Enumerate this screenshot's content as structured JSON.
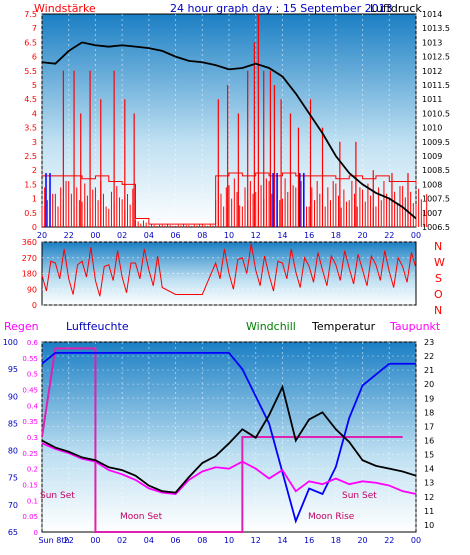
{
  "header": {
    "left_label": "Windstärke",
    "title": "24 hour graph day : 15 September 2013",
    "right_label": "Luftdruck"
  },
  "colors": {
    "wind": "#ff0000",
    "gust_blue": "#0000ff",
    "pressure": "#000000",
    "direction": "#ff0000",
    "humidity": "#0000ff",
    "windchill": "#008000",
    "temperature": "#000000",
    "dewpoint": "#ff00ff",
    "moon_sun": "#e020b0",
    "axis_left": "#ff0000",
    "axis_blue": "#0000c0",
    "bg_top": "#1b7fc4",
    "bg_bottom": "#ffffff"
  },
  "chart_data": [
    {
      "type": "bar",
      "title": "24 hour graph day : 15 September 2013",
      "y_left_label": "Windstärke",
      "y_right_label": "Luftdruck",
      "x_ticks": [
        "20",
        "22",
        "00",
        "02",
        "04",
        "06",
        "08",
        "10",
        "12",
        "14",
        "16",
        "18",
        "20",
        "22",
        "00"
      ],
      "y_left_ticks": [
        "0",
        "0.5",
        "1",
        "1.5",
        "2",
        "2.5",
        "3",
        "3.5",
        "4",
        "4.5",
        "5",
        "5.5",
        "6",
        "6.5",
        "7",
        "7.5"
      ],
      "y_right_ticks": [
        "1006.5",
        "1007",
        "1007.5",
        "1008",
        "1008.5",
        "1009",
        "1009.5",
        "1010",
        "1010.5",
        "1011",
        "1011.5",
        "1012",
        "1012.5",
        "1013",
        "1013.5",
        "1014"
      ],
      "ylim_left": [
        0,
        7.5
      ],
      "ylim_right": [
        1006.5,
        1014
      ],
      "series": [
        {
          "name": "Luftdruck",
          "type": "line",
          "points": [
            [
              0,
              1012.3
            ],
            [
              1,
              1012.25
            ],
            [
              2,
              1012.7
            ],
            [
              3,
              1013.0
            ],
            [
              4,
              1012.9
            ],
            [
              5,
              1012.85
            ],
            [
              6,
              1012.9
            ],
            [
              7,
              1012.85
            ],
            [
              8,
              1012.8
            ],
            [
              9,
              1012.7
            ],
            [
              10,
              1012.5
            ],
            [
              11,
              1012.35
            ],
            [
              12,
              1012.3
            ],
            [
              13,
              1012.2
            ],
            [
              14,
              1012.05
            ],
            [
              15,
              1012.1
            ],
            [
              16,
              1012.25
            ],
            [
              17,
              1012.1
            ],
            [
              18,
              1011.8
            ],
            [
              19,
              1011.2
            ],
            [
              20,
              1010.5
            ],
            [
              21,
              1009.8
            ],
            [
              22,
              1009.0
            ],
            [
              23,
              1008.4
            ],
            [
              24,
              1008.0
            ],
            [
              25,
              1007.7
            ],
            [
              26,
              1007.5
            ],
            [
              27,
              1007.2
            ],
            [
              28,
              1006.8
            ]
          ]
        },
        {
          "name": "",
          "type": "bar",
          "segments": [
            [
              0,
              1.8
            ],
            [
              1,
              1.8
            ],
            [
              2,
              1.8
            ],
            [
              3,
              1.7
            ],
            [
              4,
              1.8
            ],
            [
              5,
              1.6
            ],
            [
              6,
              1.5
            ],
            [
              7,
              0.3
            ],
            [
              8,
              0.1
            ],
            [
              9,
              0.1
            ],
            [
              10,
              0.1
            ],
            [
              11,
              0.1
            ],
            [
              12,
              0.1
            ],
            [
              13,
              1.8
            ],
            [
              14,
              1.9
            ],
            [
              15,
              1.8
            ],
            [
              16,
              1.9
            ],
            [
              17,
              1.8
            ],
            [
              18,
              1.9
            ],
            [
              19,
              1.8
            ],
            [
              20,
              1.8
            ],
            [
              21,
              1.8
            ],
            [
              22,
              1.7
            ],
            [
              23,
              1.8
            ],
            [
              24,
              1.7
            ],
            [
              25,
              1.8
            ],
            [
              26,
              1.6
            ],
            [
              27,
              1.6
            ],
            [
              28,
              1.5
            ]
          ]
        },
        {
          "name": "",
          "type": "bar",
          "spikes": [
            [
              1.6,
              5.5
            ],
            [
              2.4,
              5.5
            ],
            [
              2.9,
              4.0
            ],
            [
              3.6,
              5.5
            ],
            [
              4.4,
              4.5
            ],
            [
              5.4,
              5.5
            ],
            [
              6.2,
              4.5
            ],
            [
              6.9,
              4.0
            ],
            [
              13.2,
              4.5
            ],
            [
              13.9,
              5.0
            ],
            [
              14.7,
              4.0
            ],
            [
              15.4,
              5.5
            ],
            [
              15.9,
              6.5
            ],
            [
              16.2,
              7.5
            ],
            [
              16.6,
              5.5
            ],
            [
              17.1,
              5.5
            ],
            [
              17.4,
              5.0
            ],
            [
              17.9,
              4.5
            ],
            [
              18.6,
              4.0
            ],
            [
              19.2,
              3.5
            ],
            [
              20.1,
              4.5
            ],
            [
              21.0,
              3.5
            ],
            [
              22.3,
              3.0
            ],
            [
              23.5,
              3.0
            ],
            [
              24.8,
              2.0
            ],
            [
              26.2,
              1.9
            ],
            [
              27.4,
              1.9
            ]
          ]
        }
      ]
    },
    {
      "type": "line",
      "title": "",
      "ylabel": "",
      "y_ticks": [
        "0",
        "90",
        "180",
        "270",
        "360"
      ],
      "ylim": [
        0,
        360
      ],
      "right_labels": [
        "N",
        "W",
        "S",
        "O",
        "N"
      ],
      "series": [
        {
          "name": "",
          "points": [
            [
              0,
              170
            ],
            [
              1,
              240
            ],
            [
              2,
              150
            ],
            [
              3,
              250
            ],
            [
              4,
              140
            ],
            [
              5,
              230
            ],
            [
              6,
              160
            ],
            [
              7,
              240
            ],
            [
              8,
              200
            ],
            [
              9,
              100
            ],
            [
              10,
              60
            ],
            [
              11,
              60
            ],
            [
              12,
              60
            ],
            [
              13,
              240
            ],
            [
              14,
              180
            ],
            [
              15,
              270
            ],
            [
              16,
              200
            ],
            [
              17,
              170
            ],
            [
              18,
              240
            ],
            [
              19,
              190
            ],
            [
              20,
              220
            ],
            [
              21,
              200
            ],
            [
              22,
              230
            ],
            [
              23,
              210
            ],
            [
              24,
              200
            ],
            [
              25,
              230
            ],
            [
              26,
              190
            ],
            [
              27,
              220
            ],
            [
              28,
              210
            ]
          ]
        }
      ]
    },
    {
      "type": "line",
      "title": "",
      "legend": [
        "Regen",
        "Luftfeuchte",
        "Windchill",
        "Temperatur",
        "Taupunkt"
      ],
      "x_ticks": [
        "Sun 8th",
        "22",
        "00",
        "02",
        "04",
        "06",
        "08",
        "10",
        "12",
        "14",
        "16",
        "18",
        "20",
        "22",
        "00"
      ],
      "y_regen_ticks": [
        "0",
        "0.05",
        "0.1",
        "0.15",
        "0.2",
        "0.25",
        "0.3",
        "0.35",
        "0.4",
        "0.45",
        "0.5",
        "0.55",
        "0.6"
      ],
      "y_humidity_ticks": [
        "65",
        "70",
        "75",
        "80",
        "85",
        "90",
        "95",
        "100"
      ],
      "y_temp_ticks": [
        "10",
        "11",
        "12",
        "13",
        "14",
        "15",
        "16",
        "17",
        "18",
        "19",
        "20",
        "21",
        "22",
        "23"
      ],
      "ylim_regen": [
        0,
        0.6
      ],
      "ylim_humidity": [
        65,
        100
      ],
      "ylim_temp": [
        9.5,
        23
      ],
      "annotations": [
        "Sun Set",
        "Moon Set",
        "Moon Rise",
        "Sun Set"
      ],
      "series": [
        {
          "name": "Luftfeuchte",
          "points": [
            [
              0,
              96
            ],
            [
              1,
              98
            ],
            [
              2,
              98
            ],
            [
              3,
              98
            ],
            [
              4,
              98
            ],
            [
              5,
              98
            ],
            [
              6,
              98
            ],
            [
              7,
              98
            ],
            [
              8,
              98
            ],
            [
              9,
              98
            ],
            [
              10,
              98
            ],
            [
              11,
              98
            ],
            [
              12,
              98
            ],
            [
              13,
              98
            ],
            [
              14,
              98
            ],
            [
              15,
              95
            ],
            [
              16,
              90
            ],
            [
              17,
              85
            ],
            [
              18,
              76
            ],
            [
              19,
              67
            ],
            [
              20,
              73
            ],
            [
              21,
              72
            ],
            [
              22,
              77
            ],
            [
              23,
              86
            ],
            [
              24,
              92
            ],
            [
              25,
              94
            ],
            [
              26,
              96
            ],
            [
              27,
              96
            ],
            [
              28,
              96
            ]
          ]
        },
        {
          "name": "Temperatur",
          "points": [
            [
              0,
              16
            ],
            [
              1,
              15.5
            ],
            [
              2,
              15.2
            ],
            [
              3,
              14.8
            ],
            [
              4,
              14.6
            ],
            [
              5,
              14.1
            ],
            [
              6,
              13.9
            ],
            [
              7,
              13.5
            ],
            [
              8,
              12.8
            ],
            [
              9,
              12.4
            ],
            [
              10,
              12.3
            ],
            [
              11,
              13.4
            ],
            [
              12,
              14.4
            ],
            [
              13,
              14.9
            ],
            [
              14,
              15.8
            ],
            [
              15,
              16.8
            ],
            [
              16,
              16.2
            ],
            [
              17,
              17.8
            ],
            [
              18,
              19.8
            ],
            [
              19,
              16.0
            ],
            [
              20,
              17.5
            ],
            [
              21,
              18.0
            ],
            [
              22,
              16.8
            ],
            [
              23,
              15.9
            ],
            [
              24,
              14.6
            ],
            [
              25,
              14.2
            ],
            [
              26,
              14.0
            ],
            [
              27,
              13.8
            ],
            [
              28,
              13.5
            ]
          ]
        },
        {
          "name": "Taupunkt",
          "points": [
            [
              0,
              15.8
            ],
            [
              1,
              15.4
            ],
            [
              2,
              15.1
            ],
            [
              3,
              14.7
            ],
            [
              4,
              14.5
            ],
            [
              5,
              13.9
            ],
            [
              6,
              13.6
            ],
            [
              7,
              13.2
            ],
            [
              8,
              12.6
            ],
            [
              9,
              12.3
            ],
            [
              10,
              12.2
            ],
            [
              11,
              13.2
            ],
            [
              12,
              13.8
            ],
            [
              13,
              14.1
            ],
            [
              14,
              14.0
            ],
            [
              15,
              14.5
            ],
            [
              16,
              14.0
            ],
            [
              17,
              13.3
            ],
            [
              18,
              13.9
            ],
            [
              19,
              12.4
            ],
            [
              20,
              13.1
            ],
            [
              21,
              12.9
            ],
            [
              22,
              13.3
            ],
            [
              23,
              12.9
            ],
            [
              24,
              13.1
            ],
            [
              25,
              13.0
            ],
            [
              26,
              12.8
            ],
            [
              27,
              12.4
            ],
            [
              28,
              12.2
            ]
          ]
        },
        {
          "name": "Regen",
          "type": "step",
          "points": [
            [
              0,
              0.3
            ],
            [
              1,
              0.58
            ],
            [
              4,
              0.58
            ],
            [
              4,
              0
            ],
            [
              15,
              0
            ],
            [
              15,
              0.3
            ],
            [
              19,
              0.3
            ],
            [
              27,
              0.3
            ],
            [
              27,
              0.3
            ]
          ]
        }
      ]
    }
  ]
}
